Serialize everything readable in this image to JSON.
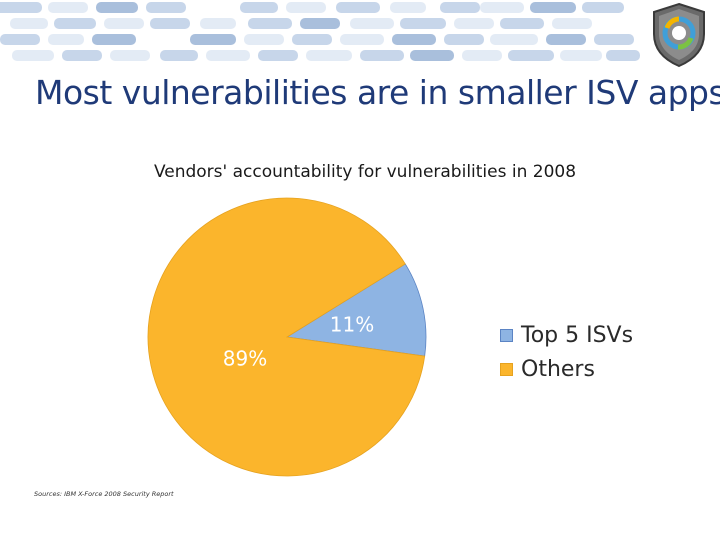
{
  "slide": {
    "title": "Most vulnerabilities are in smaller ISV apps",
    "source": "Sources: IBM X-Force 2008 Security Report"
  },
  "decor": {
    "icon": "shield-logo-icon",
    "colors": {
      "tile_light": "#e3ebf5",
      "tile_mid": "#c7d6ea",
      "tile_dark": "#a9bfdc"
    }
  },
  "chart_data": {
    "type": "pie",
    "title": "Vendors' accountability for vulnerabilities in 2008",
    "slices": [
      {
        "label": "Top 5 ISVs",
        "value": 11,
        "display": "11%",
        "color": "#8eb4e3"
      },
      {
        "label": "Others",
        "value": 89,
        "display": "89%",
        "color": "#fbb52c"
      }
    ],
    "legend_position": "right"
  }
}
